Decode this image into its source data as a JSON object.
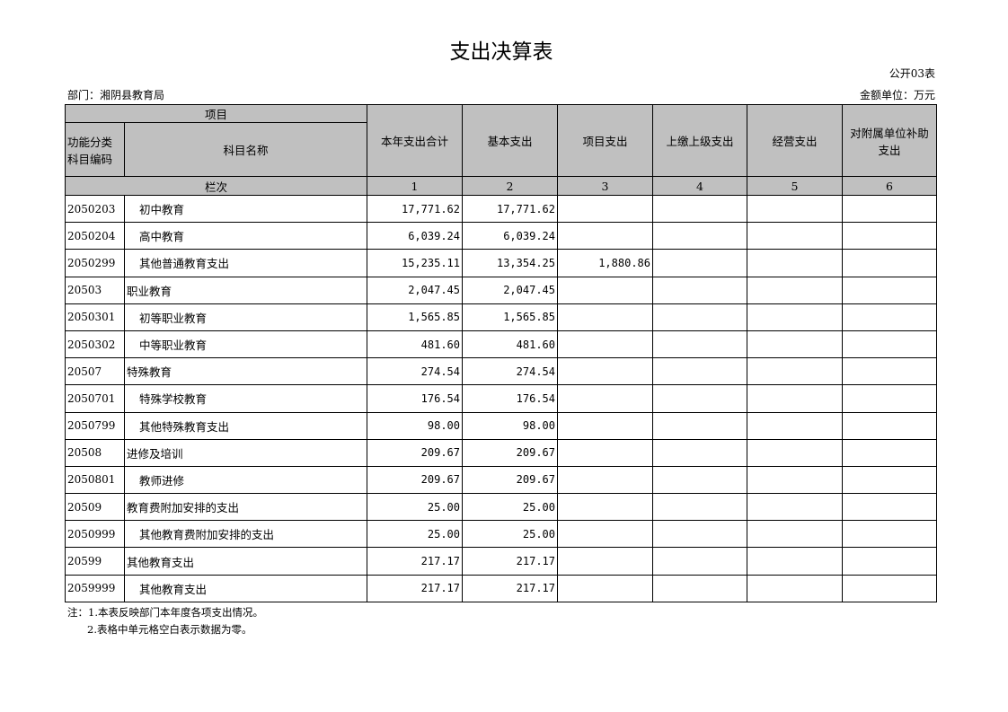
{
  "title": "支出决算表",
  "form_no": "公开03表",
  "department": "部门：湘阴县教育局",
  "unit": "金额单位：万元",
  "header": {
    "item": "项目",
    "code": "功能分类科目编码",
    "name": "科目名称",
    "columns": [
      "本年支出合计",
      "基本支出",
      "项目支出",
      "上缴上级支出",
      "经营支出",
      "对附属单位补助支出"
    ],
    "row_index_label": "栏次",
    "row_index": [
      "1",
      "2",
      "3",
      "4",
      "5",
      "6"
    ]
  },
  "rows": [
    {
      "code": "2050203",
      "name": "初中教育",
      "indent": true,
      "values": [
        "17,771.62",
        "17,771.62",
        "",
        "",
        "",
        ""
      ]
    },
    {
      "code": "2050204",
      "name": "高中教育",
      "indent": true,
      "values": [
        "6,039.24",
        "6,039.24",
        "",
        "",
        "",
        ""
      ]
    },
    {
      "code": "2050299",
      "name": "其他普通教育支出",
      "indent": true,
      "values": [
        "15,235.11",
        "13,354.25",
        "1,880.86",
        "",
        "",
        ""
      ]
    },
    {
      "code": "20503",
      "name": "职业教育",
      "indent": false,
      "values": [
        "2,047.45",
        "2,047.45",
        "",
        "",
        "",
        ""
      ]
    },
    {
      "code": "2050301",
      "name": "初等职业教育",
      "indent": true,
      "values": [
        "1,565.85",
        "1,565.85",
        "",
        "",
        "",
        ""
      ]
    },
    {
      "code": "2050302",
      "name": "中等职业教育",
      "indent": true,
      "values": [
        "481.60",
        "481.60",
        "",
        "",
        "",
        ""
      ]
    },
    {
      "code": "20507",
      "name": "特殊教育",
      "indent": false,
      "values": [
        "274.54",
        "274.54",
        "",
        "",
        "",
        ""
      ]
    },
    {
      "code": "2050701",
      "name": "特殊学校教育",
      "indent": true,
      "values": [
        "176.54",
        "176.54",
        "",
        "",
        "",
        ""
      ]
    },
    {
      "code": "2050799",
      "name": "其他特殊教育支出",
      "indent": true,
      "values": [
        "98.00",
        "98.00",
        "",
        "",
        "",
        ""
      ]
    },
    {
      "code": "20508",
      "name": "进修及培训",
      "indent": false,
      "values": [
        "209.67",
        "209.67",
        "",
        "",
        "",
        ""
      ]
    },
    {
      "code": "2050801",
      "name": "教师进修",
      "indent": true,
      "values": [
        "209.67",
        "209.67",
        "",
        "",
        "",
        ""
      ]
    },
    {
      "code": "20509",
      "name": "教育费附加安排的支出",
      "indent": false,
      "values": [
        "25.00",
        "25.00",
        "",
        "",
        "",
        ""
      ]
    },
    {
      "code": "2050999",
      "name": "其他教育费附加安排的支出",
      "indent": true,
      "values": [
        "25.00",
        "25.00",
        "",
        "",
        "",
        ""
      ]
    },
    {
      "code": "20599",
      "name": "其他教育支出",
      "indent": false,
      "values": [
        "217.17",
        "217.17",
        "",
        "",
        "",
        ""
      ]
    },
    {
      "code": "2059999",
      "name": "其他教育支出",
      "indent": true,
      "values": [
        "217.17",
        "217.17",
        "",
        "",
        "",
        ""
      ]
    }
  ],
  "notes": [
    "注：1.本表反映部门本年度各项支出情况。",
    "2.表格中单元格空白表示数据为零。"
  ]
}
